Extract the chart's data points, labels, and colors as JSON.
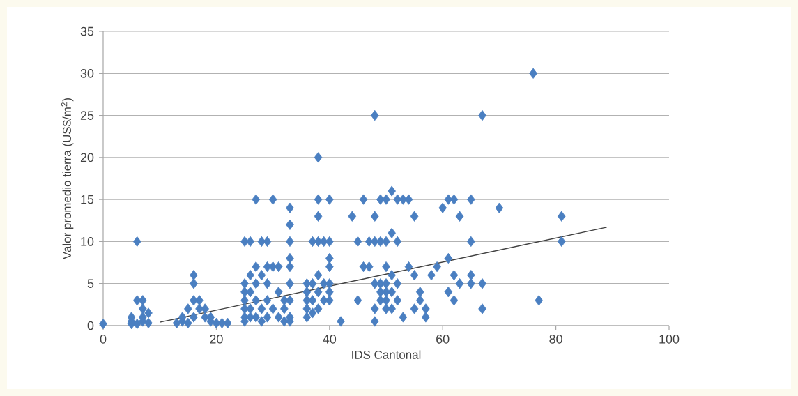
{
  "chart_data": {
    "type": "scatter",
    "xlabel": "IDS Cantonal",
    "ylabel": "Valor promedio tierra (US$/m$^{2}$)",
    "xlim": [
      0,
      100
    ],
    "xticks": [
      0,
      20,
      40,
      60,
      80,
      100
    ],
    "ylim": [
      0,
      35
    ],
    "yticks": [
      0,
      5,
      10,
      15,
      20,
      25,
      30,
      35
    ],
    "grid": "y",
    "marker": "diamond",
    "series": [
      {
        "color": "#4a7fc1",
        "x": [
          0,
          5,
          5,
          5,
          6,
          6,
          6,
          7,
          7,
          7,
          7,
          8,
          8,
          13,
          14,
          14,
          15,
          15,
          16,
          16,
          16,
          16,
          17,
          17,
          18,
          18,
          19,
          19,
          20,
          21,
          22,
          25,
          25,
          25,
          25,
          25,
          25,
          25,
          26,
          26,
          26,
          26,
          26,
          27,
          27,
          27,
          27,
          27,
          28,
          28,
          28,
          28,
          29,
          29,
          29,
          29,
          29,
          30,
          30,
          30,
          31,
          31,
          31,
          32,
          32,
          32,
          33,
          33,
          33,
          33,
          33,
          33,
          33,
          33,
          33,
          36,
          36,
          36,
          36,
          36,
          37,
          37,
          37,
          37,
          38,
          38,
          38,
          38,
          38,
          38,
          38,
          39,
          39,
          39,
          40,
          40,
          40,
          40,
          40,
          40,
          40,
          42,
          44,
          45,
          45,
          46,
          46,
          47,
          47,
          48,
          48,
          48,
          48,
          48,
          48,
          49,
          49,
          49,
          49,
          49,
          50,
          50,
          50,
          50,
          50,
          50,
          50,
          51,
          51,
          51,
          51,
          51,
          52,
          52,
          52,
          52,
          53,
          53,
          54,
          54,
          55,
          55,
          55,
          56,
          56,
          57,
          57,
          58,
          59,
          60,
          61,
          61,
          61,
          62,
          62,
          62,
          63,
          63,
          65,
          65,
          65,
          65,
          67,
          67,
          67,
          70,
          76,
          77,
          81,
          81
        ],
        "values": [
          0.2,
          0.5,
          1,
          0.2,
          3,
          0.2,
          10,
          2,
          3,
          0.5,
          1,
          0.3,
          1.5,
          0.3,
          0.5,
          1,
          0.3,
          2,
          6,
          5,
          3,
          1,
          2,
          3,
          2,
          1,
          0.5,
          1,
          0.3,
          0.3,
          0.3,
          10,
          5,
          4,
          3,
          2,
          1,
          0.5,
          10,
          6,
          4,
          2,
          1,
          15,
          7,
          5,
          3,
          1,
          10,
          6,
          2,
          0.5,
          10,
          7,
          5,
          3,
          1,
          15,
          7,
          2,
          7,
          4,
          1,
          3,
          2,
          0.5,
          14,
          12,
          10,
          8,
          7,
          5,
          3,
          1,
          0.5,
          5,
          4,
          3,
          2,
          1,
          10,
          5,
          3,
          1.5,
          20,
          15,
          13,
          10,
          6,
          4,
          2,
          10,
          5,
          3,
          15,
          10,
          8,
          7,
          5,
          4,
          3,
          0.5,
          13,
          3,
          10,
          15,
          7,
          7,
          10,
          25,
          13,
          10,
          5,
          2,
          0.5,
          15,
          10,
          5,
          4,
          3,
          15,
          10,
          7,
          5,
          4,
          3,
          2,
          16,
          11,
          6,
          4,
          2,
          15,
          10,
          5,
          3,
          1,
          15,
          15,
          7,
          13,
          6,
          2,
          4,
          3,
          2,
          1,
          6,
          7,
          14,
          15,
          8,
          4,
          15,
          6,
          3,
          13,
          5,
          15,
          10,
          6,
          5,
          25,
          5,
          2,
          14,
          30,
          3,
          13,
          10
        ]
      },
      {
        "type": "line",
        "marker": "none",
        "color": "#404040",
        "x": [
          10,
          89
        ],
        "values": [
          0.4,
          11.7
        ]
      }
    ]
  }
}
